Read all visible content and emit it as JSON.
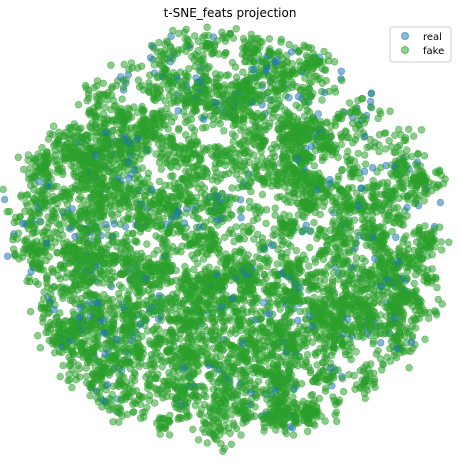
{
  "chart_data": {
    "type": "scatter",
    "title": "t-SNE_feats projection",
    "xlabel": "",
    "ylabel": "",
    "xlim": [
      0,
      100
    ],
    "ylim": [
      0,
      100
    ],
    "axes_visible": false,
    "grid": false,
    "legend_position": "top-right",
    "series": [
      {
        "name": "real",
        "color": "#1f77b4",
        "alpha": 0.5,
        "values": [
          [
            23,
            25
          ],
          [
            55,
            12
          ],
          [
            78,
            30
          ],
          [
            37,
            55
          ],
          [
            43,
            88
          ],
          [
            66,
            69
          ],
          [
            30,
            40
          ],
          [
            84,
            50
          ],
          [
            60,
            48
          ],
          [
            18,
            70
          ],
          [
            71,
            80
          ],
          [
            48,
            33
          ],
          [
            90,
            44
          ],
          [
            12,
            52
          ],
          [
            53,
            24
          ],
          [
            39,
            18
          ],
          [
            74,
            18
          ],
          [
            64,
            84
          ],
          [
            28,
            74
          ],
          [
            82,
            66
          ],
          [
            47,
            60
          ],
          [
            58,
            34
          ],
          [
            33,
            30
          ],
          [
            86,
            38
          ],
          [
            24,
            89
          ],
          [
            20,
            10
          ]
        ]
      },
      {
        "name": "fake",
        "color": "#2ca02c",
        "alpha": 0.5,
        "values": [
          [
            2,
            70
          ],
          [
            8,
            77
          ],
          [
            46,
            8
          ],
          [
            32,
            92
          ],
          [
            52,
            50
          ],
          [
            68,
            30
          ],
          [
            40,
            70
          ],
          [
            25,
            60
          ],
          [
            56,
            78
          ],
          [
            80,
            22
          ],
          [
            15,
            40
          ],
          [
            44,
            40
          ]
        ]
      }
    ]
  }
}
